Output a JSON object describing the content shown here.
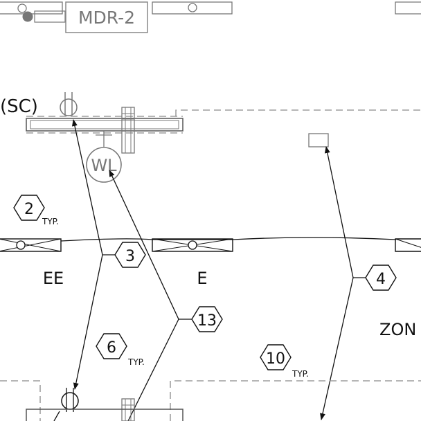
{
  "colors": {
    "ink": "#111111",
    "light_ink": "#777777",
    "dashed_gray": "#8a8a8a",
    "background": "#ffffff"
  },
  "labels": {
    "mdr": "MDR-2",
    "sc": "(SC)",
    "wl": "WL",
    "ee": "EE",
    "e": "E",
    "zone": "ZON"
  },
  "tags": {
    "t2": "2",
    "t3": "3",
    "t4": "4",
    "t6": "6",
    "t10": "10",
    "t13": "13",
    "typ": "TYP."
  },
  "icons": [
    "light-fixture-icon",
    "hexagon-tag-icon",
    "leader-arrow-icon",
    "wall-light-icon",
    "junction-icon"
  ]
}
